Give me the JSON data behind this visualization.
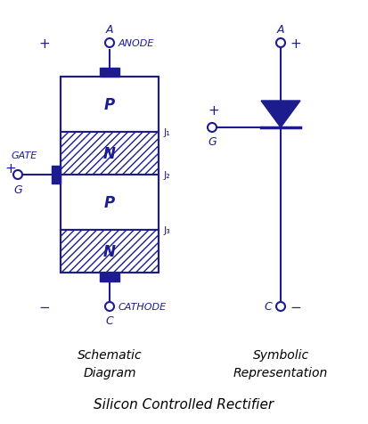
{
  "title": "Silicon Controlled Rectifier",
  "bg_color": "#ffffff",
  "line_color": "#1c1c8f",
  "text_color": "#1c1c8f",
  "figsize": [
    4.13,
    4.77
  ],
  "dpi": 100,
  "layer_order": [
    "P",
    "N",
    "P",
    "N"
  ],
  "hatch_order": [
    false,
    true,
    false,
    true
  ],
  "junction_labels": [
    "J₁",
    "J₂",
    "J₃"
  ],
  "schematic_caption": "Schematic\nDiagram",
  "symbolic_caption": "Symbolic\nRepresentation",
  "bottom_title": "Silicon Controlled Rectifier"
}
